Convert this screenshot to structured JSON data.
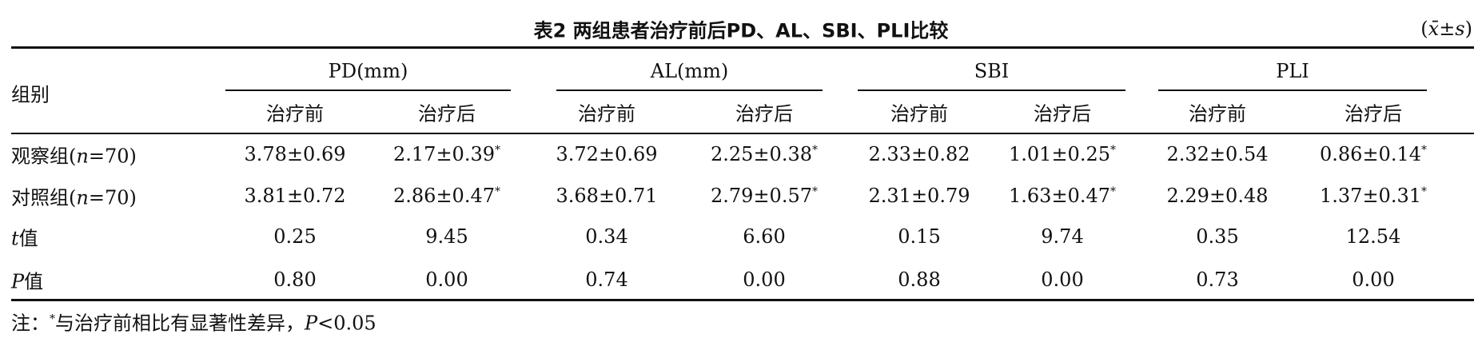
{
  "header": {
    "title": "表2 两组患者治疗前后PD、AL、SBI、PLI比较",
    "unit": [
      {
        "text": "("
      },
      {
        "text": "x̄",
        "italic": true
      },
      {
        "text": "±"
      },
      {
        "text": "s",
        "italic": true
      },
      {
        "text": ")"
      }
    ]
  },
  "table": {
    "corner": "组别",
    "groups": [
      "PD(mm)",
      "AL(mm)",
      "SBI",
      "PLI"
    ],
    "subheaders": [
      "治疗前",
      "治疗后",
      "治疗前",
      "治疗后",
      "治疗前",
      "治疗后",
      "治疗前",
      "治疗后"
    ],
    "rows": [
      {
        "label": [
          {
            "text": "观察组("
          },
          {
            "text": "n",
            "italic": true
          },
          {
            "text": "=70)"
          }
        ],
        "cells": [
          {
            "text": "3.78±0.69"
          },
          {
            "text": "2.17±0.39",
            "sup": "*"
          },
          {
            "text": "3.72±0.69"
          },
          {
            "text": "2.25±0.38",
            "sup": "*"
          },
          {
            "text": "2.33±0.82"
          },
          {
            "text": "1.01±0.25",
            "sup": "*"
          },
          {
            "text": "2.32±0.54"
          },
          {
            "text": "0.86±0.14",
            "sup": "*"
          }
        ]
      },
      {
        "label": [
          {
            "text": "对照组("
          },
          {
            "text": "n",
            "italic": true
          },
          {
            "text": "=70)"
          }
        ],
        "cells": [
          {
            "text": "3.81±0.72"
          },
          {
            "text": "2.86±0.47",
            "sup": "*"
          },
          {
            "text": "3.68±0.71"
          },
          {
            "text": "2.79±0.57",
            "sup": "*"
          },
          {
            "text": "2.31±0.79"
          },
          {
            "text": "1.63±0.47",
            "sup": "*"
          },
          {
            "text": "2.29±0.48"
          },
          {
            "text": "1.37±0.31",
            "sup": "*"
          }
        ]
      },
      {
        "label": [
          {
            "text": "t",
            "italic": true
          },
          {
            "text": "值"
          }
        ],
        "cells": [
          {
            "text": "0.25"
          },
          {
            "text": "9.45"
          },
          {
            "text": "0.34"
          },
          {
            "text": "6.60"
          },
          {
            "text": "0.15"
          },
          {
            "text": "9.74"
          },
          {
            "text": "0.35"
          },
          {
            "text": "12.54"
          }
        ]
      },
      {
        "label": [
          {
            "text": "P",
            "italic": true
          },
          {
            "text": "值"
          }
        ],
        "cells": [
          {
            "text": "0.80"
          },
          {
            "text": "0.00"
          },
          {
            "text": "0.74"
          },
          {
            "text": "0.00"
          },
          {
            "text": "0.88"
          },
          {
            "text": "0.00"
          },
          {
            "text": "0.73"
          },
          {
            "text": "0.00"
          }
        ]
      }
    ]
  },
  "note": [
    {
      "text": "注："
    },
    {
      "text": "*",
      "sup": true
    },
    {
      "text": "与治疗前相比有显著性差异，"
    },
    {
      "text": "P",
      "italic": true
    },
    {
      "text": "<0.05"
    }
  ]
}
